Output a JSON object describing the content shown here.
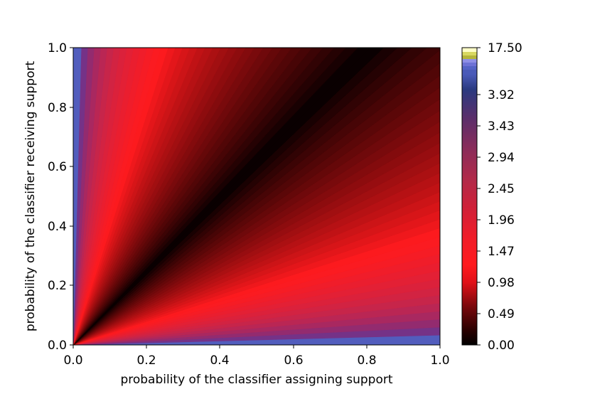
{
  "chart_data": {
    "type": "heatmap",
    "title": "",
    "xlabel": "probability of the classifier assigning support",
    "ylabel": "probability of the classifier receiving support",
    "xlim": [
      0.0,
      1.0
    ],
    "ylim": [
      0.0,
      1.0
    ],
    "x_ticks": [
      "0.0",
      "0.2",
      "0.4",
      "0.6",
      "0.8",
      "1.0"
    ],
    "y_ticks": [
      "0.0",
      "0.2",
      "0.4",
      "0.6",
      "0.8",
      "1.0"
    ],
    "colorbar": {
      "tick_labels": [
        "0.00",
        "0.49",
        "0.98",
        "1.47",
        "1.96",
        "2.45",
        "2.94",
        "3.43",
        "3.92",
        "17.50"
      ],
      "colors": [
        "#000000",
        "#3a0000",
        "#8a0a0e",
        "#e4101c",
        "#ff1a1e",
        "#ee1f2a",
        "#c42a44",
        "#9a2c55",
        "#6e2e68",
        "#2e3f86",
        "#3c50a8",
        "#5563c6",
        "#7f7fdc",
        "#b5b53b",
        "#e0e070",
        "#ffffc8"
      ]
    },
    "grid": false,
    "legend": "none",
    "description_note_free": true
  }
}
